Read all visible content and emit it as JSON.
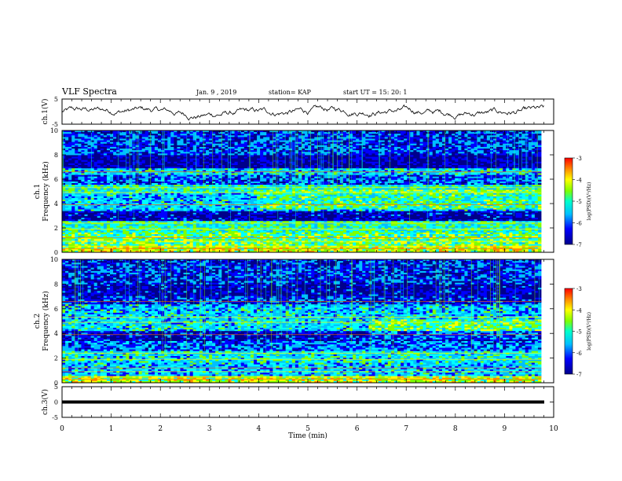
{
  "header": {
    "title": "VLF Spectra",
    "date": "Jan. 9 , 2019",
    "station": "station= KAP",
    "start": "start UT = 15: 20: 1"
  },
  "chart_data": [
    {
      "type": "line",
      "name": "ch1-waveform",
      "ylabel": "ch.1(V)",
      "ylim": [
        -5,
        5
      ],
      "yticks": [
        "5",
        "-5"
      ],
      "xlim": [
        0,
        10
      ]
    },
    {
      "type": "heatmap",
      "name": "ch1-spectrogram",
      "ylabel_top": "ch.1",
      "ylabel": "Frequency (kHz)",
      "ylim": [
        0,
        10
      ],
      "yticks": [
        "0",
        "2",
        "4",
        "6",
        "8",
        "10"
      ],
      "xlim": [
        0,
        10
      ],
      "colorbar": {
        "label": "log(PSD)(V²/Hz)",
        "range": [
          -7,
          -3
        ],
        "ticks": [
          "-3",
          "-4",
          "-5",
          "-6",
          "-7"
        ]
      },
      "bands_khz": [
        {
          "lo": 0.0,
          "hi": 0.6,
          "level": -4.4
        },
        {
          "lo": 0.6,
          "hi": 1.6,
          "level": -4.9
        },
        {
          "lo": 1.6,
          "hi": 2.6,
          "level": -5.2
        },
        {
          "lo": 2.6,
          "hi": 3.4,
          "level": -6.6
        },
        {
          "lo": 3.4,
          "hi": 4.8,
          "level": -5.6
        },
        {
          "lo": 4.8,
          "hi": 5.5,
          "level": -5.3
        },
        {
          "lo": 5.5,
          "hi": 6.3,
          "level": -6.1
        },
        {
          "lo": 6.3,
          "hi": 6.9,
          "level": -5.5
        },
        {
          "lo": 6.9,
          "hi": 8.0,
          "level": -6.7
        },
        {
          "lo": 8.0,
          "hi": 10.0,
          "level": -6.2
        }
      ]
    },
    {
      "type": "heatmap",
      "name": "ch2-spectrogram",
      "ylabel_top": "ch.2",
      "ylabel": "Frequency (kHz)",
      "ylim": [
        0,
        10
      ],
      "yticks": [
        "0",
        "2",
        "4",
        "6",
        "8",
        "10"
      ],
      "xlim": [
        0,
        10
      ],
      "colorbar": {
        "label": "log(PSD)(V²/Hz)",
        "range": [
          -7,
          -3
        ],
        "ticks": [
          "-3",
          "-4",
          "-5",
          "-6",
          "-7"
        ]
      },
      "bands_khz": [
        {
          "lo": 0.0,
          "hi": 0.6,
          "level": -4.5
        },
        {
          "lo": 0.6,
          "hi": 1.6,
          "level": -5.6
        },
        {
          "lo": 1.6,
          "hi": 2.6,
          "level": -5.4
        },
        {
          "lo": 2.6,
          "hi": 3.4,
          "level": -6.0
        },
        {
          "lo": 3.4,
          "hi": 4.2,
          "level": -6.5
        },
        {
          "lo": 4.2,
          "hi": 5.5,
          "level": -5.5
        },
        {
          "lo": 5.5,
          "hi": 6.3,
          "level": -5.6
        },
        {
          "lo": 6.3,
          "hi": 7.0,
          "level": -6.3
        },
        {
          "lo": 7.0,
          "hi": 8.0,
          "level": -6.6
        },
        {
          "lo": 8.0,
          "hi": 10.0,
          "level": -6.3
        }
      ]
    },
    {
      "type": "line",
      "name": "ch3-waveform",
      "ylabel": "ch.3(V)",
      "ylim": [
        -5,
        5
      ],
      "yticks": [
        "5",
        "0",
        "-5"
      ],
      "xlim": [
        0,
        10
      ],
      "level": 0
    }
  ],
  "xaxis": {
    "label": "Time (min)",
    "ticks": [
      "0",
      "1",
      "2",
      "3",
      "4",
      "5",
      "6",
      "7",
      "8",
      "9",
      "10"
    ]
  },
  "colors": {
    "scale": [
      "#00008b",
      "#0000ff",
      "#00bfff",
      "#00ffff",
      "#7fff00",
      "#ffff00",
      "#ff8c00",
      "#ff0000"
    ]
  }
}
